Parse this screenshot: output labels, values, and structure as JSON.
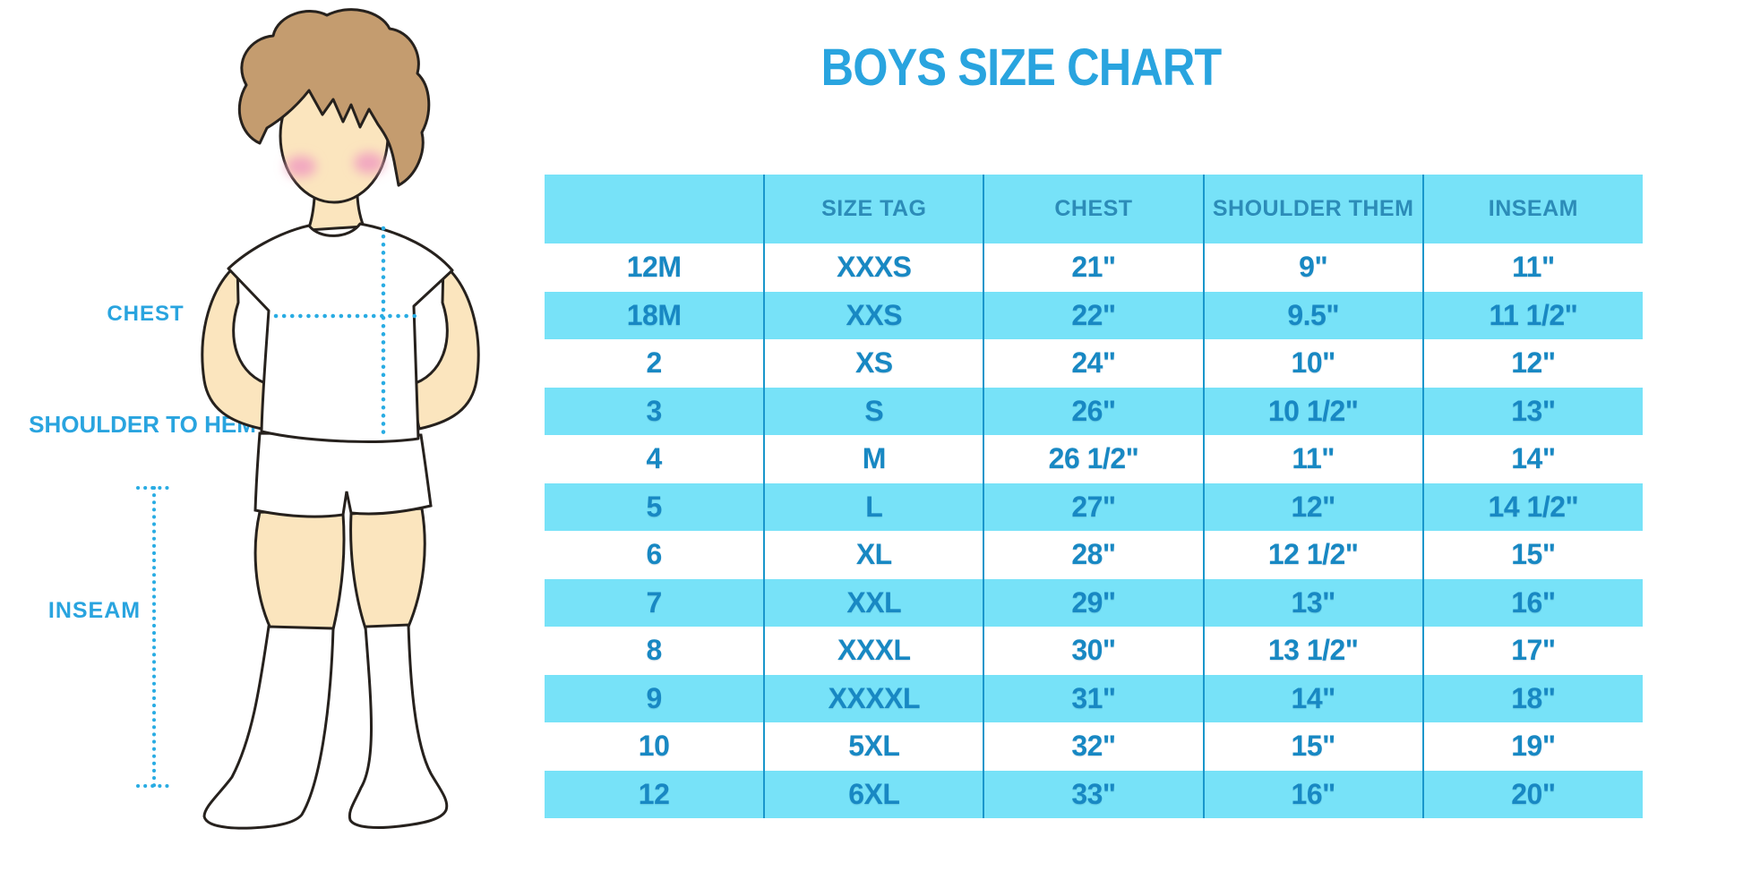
{
  "title": "BOYS SIZE CHART",
  "illustration": {
    "chest_label": "CHEST",
    "shoulder_to_hem_label": "SHOULDER TO HEM",
    "inseam_label": "INSEAM"
  },
  "chart_data": {
    "type": "table",
    "title": "BOYS SIZE CHART",
    "columns": [
      "",
      "SIZE TAG",
      "CHEST",
      "SHOULDER THEM",
      "INSEAM"
    ],
    "rows": [
      [
        "12M",
        "XXXS",
        "21\"",
        "9\"",
        "11\""
      ],
      [
        "18M",
        "XXS",
        "22\"",
        "9.5\"",
        "11 1/2\""
      ],
      [
        "2",
        "XS",
        "24\"",
        "10\"",
        "12\""
      ],
      [
        "3",
        "S",
        "26\"",
        "10 1/2\"",
        "13\""
      ],
      [
        "4",
        "M",
        "26 1/2\"",
        "11\"",
        "14\""
      ],
      [
        "5",
        "L",
        "27\"",
        "12\"",
        "14 1/2\""
      ],
      [
        "6",
        "XL",
        "28\"",
        "12 1/2\"",
        "15\""
      ],
      [
        "7",
        "XXL",
        "29\"",
        "13\"",
        "16\""
      ],
      [
        "8",
        "XXXL",
        "30\"",
        "13 1/2\"",
        "17\""
      ],
      [
        "9",
        "XXXXL",
        "31\"",
        "14\"",
        "18\""
      ],
      [
        "10",
        "5XL",
        "32\"",
        "15\"",
        "19\""
      ],
      [
        "12",
        "6XL",
        "33\"",
        "16\"",
        "20\""
      ]
    ],
    "row_stripe_colors": [
      "#FFFFFF",
      "#77E2F8"
    ],
    "grid": "vertical-dividers",
    "legend_position": "none"
  },
  "colors": {
    "accent_blue": "#29A4DF",
    "band_cyan": "#77E2F8",
    "header_text": "#2C8CB8",
    "cell_text": "#1888C3",
    "divider": "#1996CB",
    "dotted_line": "#29ACE3",
    "hair": "#C49C6F",
    "skin": "#FBE5BE",
    "cheek": "#F2A8C0"
  }
}
